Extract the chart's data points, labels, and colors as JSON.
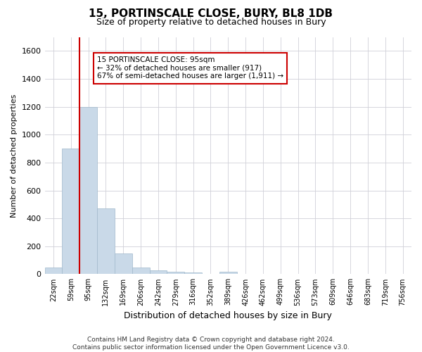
{
  "title": "15, PORTINSCALE CLOSE, BURY, BL8 1DB",
  "subtitle": "Size of property relative to detached houses in Bury",
  "xlabel": "Distribution of detached houses by size in Bury",
  "ylabel": "Number of detached properties",
  "categories": [
    "22sqm",
    "59sqm",
    "95sqm",
    "132sqm",
    "169sqm",
    "206sqm",
    "242sqm",
    "279sqm",
    "316sqm",
    "352sqm",
    "389sqm",
    "426sqm",
    "462sqm",
    "499sqm",
    "536sqm",
    "573sqm",
    "609sqm",
    "646sqm",
    "683sqm",
    "719sqm",
    "756sqm"
  ],
  "values": [
    50,
    900,
    1200,
    470,
    150,
    50,
    25,
    15,
    10,
    0,
    15,
    0,
    0,
    0,
    0,
    0,
    0,
    0,
    0,
    0,
    0
  ],
  "bar_color": "#c9d9e8",
  "bar_edgecolor": "#a0b8cc",
  "red_line_index": 2,
  "annotation_text": "15 PORTINSCALE CLOSE: 95sqm\n← 32% of detached houses are smaller (917)\n67% of semi-detached houses are larger (1,911) →",
  "annotation_box_edgecolor": "#cc0000",
  "vline_color": "#cc0000",
  "ylim": [
    0,
    1700
  ],
  "yticks": [
    0,
    200,
    400,
    600,
    800,
    1000,
    1200,
    1400,
    1600
  ],
  "footer": "Contains HM Land Registry data © Crown copyright and database right 2024.\nContains public sector information licensed under the Open Government Licence v3.0.",
  "background_color": "#ffffff",
  "grid_color": "#d0d0d8"
}
